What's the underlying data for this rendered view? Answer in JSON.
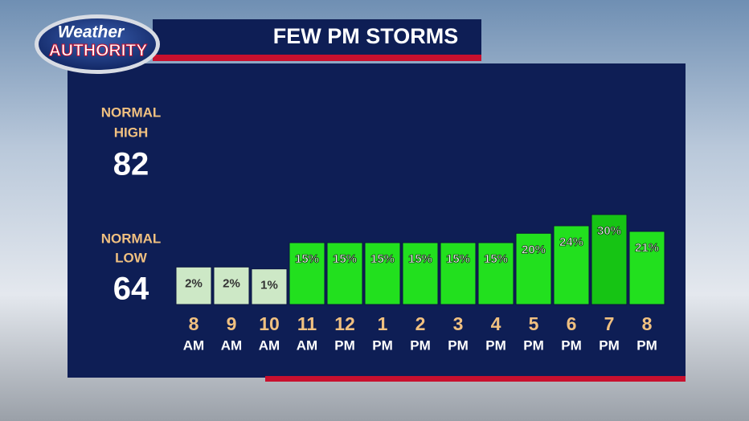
{
  "logo": {
    "line1": "Weather",
    "line2": "AUTHORITY"
  },
  "normals": [
    {
      "label": [
        "NORMAL",
        "HIGH"
      ],
      "value": "82"
    },
    {
      "label": [
        "NORMAL",
        "LOW"
      ],
      "value": "64"
    }
  ],
  "chart_data": {
    "type": "bar",
    "title": "FEW PM STORMS",
    "categories": [
      [
        "8",
        "AM"
      ],
      [
        "9",
        "AM"
      ],
      [
        "10",
        "AM"
      ],
      [
        "11",
        "AM"
      ],
      [
        "12",
        "PM"
      ],
      [
        "1",
        "PM"
      ],
      [
        "2",
        "PM"
      ],
      [
        "3",
        "PM"
      ],
      [
        "4",
        "PM"
      ],
      [
        "5",
        "PM"
      ],
      [
        "6",
        "PM"
      ],
      [
        "7",
        "PM"
      ],
      [
        "8",
        "PM"
      ]
    ],
    "values": [
      2,
      2,
      1,
      15,
      15,
      15,
      15,
      15,
      15,
      20,
      24,
      30,
      21
    ],
    "value_labels": [
      "2%",
      "2%",
      "1%",
      "15%",
      "15%",
      "15%",
      "15%",
      "15%",
      "15%",
      "20%",
      "24%",
      "30%",
      "21%"
    ],
    "colors": [
      "#cde8c6",
      "#cde8c6",
      "#cde8c6",
      "#22e01e",
      "#22e01e",
      "#22e01e",
      "#22e01e",
      "#22e01e",
      "#22e01e",
      "#22e01e",
      "#22e01e",
      "#16c414",
      "#22e01e"
    ],
    "ylim": [
      -18,
      30
    ]
  }
}
